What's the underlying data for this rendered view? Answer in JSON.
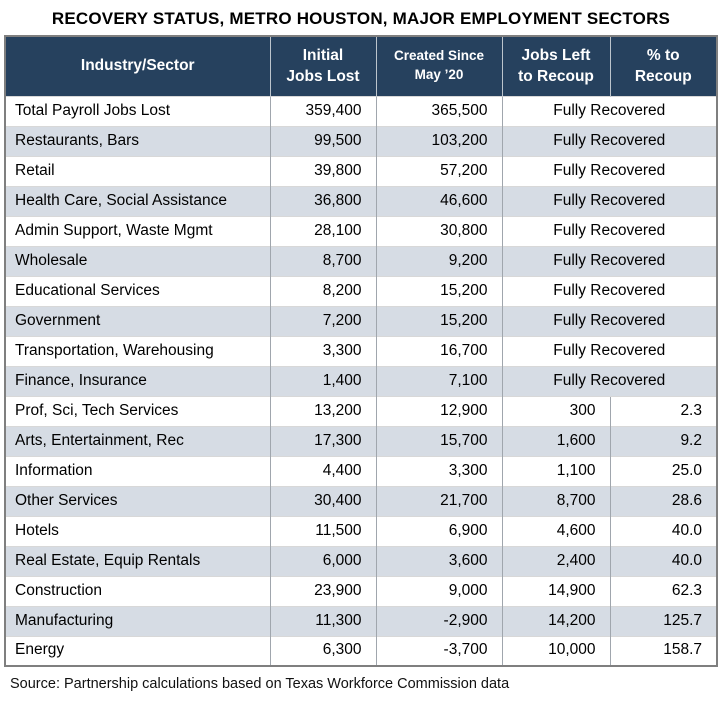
{
  "title": "RECOVERY STATUS, METRO HOUSTON, MAJOR EMPLOYMENT SECTORS",
  "columns": {
    "sector": "Industry/Sector",
    "initial": "Initial\nJobs Lost",
    "created": "Created Since\nMay ’20",
    "left": "Jobs Left\nto Recoup",
    "pct": "% to\nRecoup"
  },
  "fully_recovered_label": "Fully Recovered",
  "rows": [
    {
      "sector": "Total Payroll Jobs Lost",
      "initial": "359,400",
      "created": "365,500",
      "status": "Fully Recovered"
    },
    {
      "sector": "Restaurants, Bars",
      "initial": "99,500",
      "created": "103,200",
      "status": "Fully Recovered"
    },
    {
      "sector": "Retail",
      "initial": "39,800",
      "created": "57,200",
      "status": "Fully Recovered"
    },
    {
      "sector": "Health Care, Social Assistance",
      "initial": "36,800",
      "created": "46,600",
      "status": "Fully Recovered"
    },
    {
      "sector": "Admin Support, Waste Mgmt",
      "initial": "28,100",
      "created": "30,800",
      "status": "Fully Recovered"
    },
    {
      "sector": "Wholesale",
      "initial": "8,700",
      "created": "9,200",
      "status": "Fully Recovered"
    },
    {
      "sector": "Educational Services",
      "initial": "8,200",
      "created": "15,200",
      "status": "Fully Recovered"
    },
    {
      "sector": "Government",
      "initial": "7,200",
      "created": "15,200",
      "status": "Fully Recovered"
    },
    {
      "sector": "Transportation, Warehousing",
      "initial": "3,300",
      "created": "16,700",
      "status": "Fully Recovered"
    },
    {
      "sector": "Finance, Insurance",
      "initial": "1,400",
      "created": "7,100",
      "status": "Fully Recovered"
    },
    {
      "sector": "Prof, Sci, Tech Services",
      "initial": "13,200",
      "created": "12,900",
      "left": "300",
      "pct": "2.3"
    },
    {
      "sector": "Arts, Entertainment, Rec",
      "initial": "17,300",
      "created": "15,700",
      "left": "1,600",
      "pct": "9.2"
    },
    {
      "sector": "Information",
      "initial": "4,400",
      "created": "3,300",
      "left": "1,100",
      "pct": "25.0"
    },
    {
      "sector": "Other Services",
      "initial": "30,400",
      "created": "21,700",
      "left": "8,700",
      "pct": "28.6"
    },
    {
      "sector": "Hotels",
      "initial": "11,500",
      "created": "6,900",
      "left": "4,600",
      "pct": "40.0"
    },
    {
      "sector": "Real Estate, Equip Rentals",
      "initial": "6,000",
      "created": "3,600",
      "left": "2,400",
      "pct": "40.0"
    },
    {
      "sector": "Construction",
      "initial": "23,900",
      "created": "9,000",
      "left": "14,900",
      "pct": "62.3"
    },
    {
      "sector": "Manufacturing",
      "initial": "11,300",
      "created": "-2,900",
      "left": "14,200",
      "pct": "125.7"
    },
    {
      "sector": "Energy",
      "initial": "6,300",
      "created": "-3,700",
      "left": "10,000",
      "pct": "158.7"
    }
  ],
  "source": "Source: Partnership calculations based on Texas Workforce Commission data",
  "colors": {
    "header_bg": "#26415E",
    "header_text": "#FFFFFF",
    "stripe_bg": "#D6DCE4",
    "outer_border": "#7F7F7F",
    "column_divider": "#A0A6AD",
    "row_divider": "#D8D8D8"
  },
  "chart_data": {
    "type": "table",
    "title": "RECOVERY STATUS, METRO HOUSTON, MAJOR EMPLOYMENT SECTORS",
    "columns": [
      "Industry/Sector",
      "Initial Jobs Lost",
      "Created Since May ’20",
      "Jobs Left to Recoup",
      "% to Recoup"
    ],
    "rows": [
      [
        "Total Payroll Jobs Lost",
        359400,
        365500,
        "Fully Recovered",
        null
      ],
      [
        "Restaurants, Bars",
        99500,
        103200,
        "Fully Recovered",
        null
      ],
      [
        "Retail",
        39800,
        57200,
        "Fully Recovered",
        null
      ],
      [
        "Health Care, Social Assistance",
        36800,
        46600,
        "Fully Recovered",
        null
      ],
      [
        "Admin Support, Waste Mgmt",
        28100,
        30800,
        "Fully Recovered",
        null
      ],
      [
        "Wholesale",
        8700,
        9200,
        "Fully Recovered",
        null
      ],
      [
        "Educational Services",
        8200,
        15200,
        "Fully Recovered",
        null
      ],
      [
        "Government",
        7200,
        15200,
        "Fully Recovered",
        null
      ],
      [
        "Transportation, Warehousing",
        3300,
        16700,
        "Fully Recovered",
        null
      ],
      [
        "Finance, Insurance",
        1400,
        7100,
        "Fully Recovered",
        null
      ],
      [
        "Prof, Sci, Tech Services",
        13200,
        12900,
        300,
        2.3
      ],
      [
        "Arts, Entertainment, Rec",
        17300,
        15700,
        1600,
        9.2
      ],
      [
        "Information",
        4400,
        3300,
        1100,
        25.0
      ],
      [
        "Other Services",
        30400,
        21700,
        8700,
        28.6
      ],
      [
        "Hotels",
        11500,
        6900,
        4600,
        40.0
      ],
      [
        "Real Estate, Equip Rentals",
        6000,
        3600,
        2400,
        40.0
      ],
      [
        "Construction",
        23900,
        9000,
        14900,
        62.3
      ],
      [
        "Manufacturing",
        11300,
        -2900,
        14200,
        125.7
      ],
      [
        "Energy",
        6300,
        -3700,
        10000,
        158.7
      ]
    ],
    "source": "Source: Partnership calculations based on Texas Workforce Commission data"
  }
}
